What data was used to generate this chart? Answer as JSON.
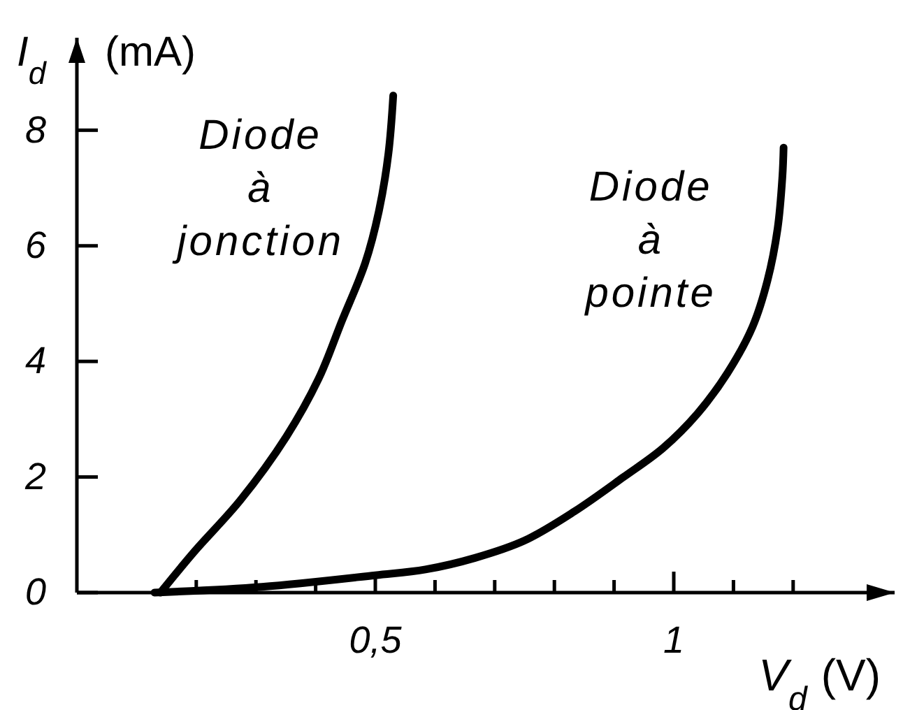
{
  "chart_data": {
    "type": "line",
    "xlabel": "V$_{d}$ (V)",
    "ylabel": "I$_{d}$ (mA)",
    "xlim": [
      0,
      1.37
    ],
    "ylim": [
      0,
      9.6
    ],
    "xticks": [
      {
        "value": 0.2,
        "label": null
      },
      {
        "value": 0.3,
        "label": null
      },
      {
        "value": 0.4,
        "label": null
      },
      {
        "value": 0.5,
        "label": "0,5"
      },
      {
        "value": 0.6,
        "label": null
      },
      {
        "value": 0.7,
        "label": null
      },
      {
        "value": 0.8,
        "label": null
      },
      {
        "value": 0.9,
        "label": null
      },
      1,
      {
        "value": 1.1,
        "label": null
      },
      {
        "value": 1.2,
        "label": null
      }
    ],
    "yticks": [
      0,
      2,
      4,
      6,
      8
    ],
    "line_style": "solid",
    "series": [
      {
        "name": "Diode à jonction",
        "color": "#000000",
        "x": [
          0.14,
          0.196,
          0.274,
          0.351,
          0.405,
          0.444,
          0.483,
          0.506,
          0.522,
          0.53
        ],
        "values": [
          0,
          0.7,
          1.6,
          2.7,
          3.7,
          4.7,
          5.7,
          6.6,
          7.6,
          8.6
        ]
      },
      {
        "name": "Diode à pointe",
        "color": "#000000",
        "x": [
          0.13,
          0.31,
          0.5,
          0.584,
          0.667,
          0.75,
          0.833,
          0.916,
          0.982,
          1.04,
          1.09,
          1.132,
          1.157,
          1.174,
          1.182,
          1.184
        ],
        "values": [
          0,
          0.1,
          0.3,
          0.4,
          0.6,
          0.9,
          1.4,
          2.0,
          2.5,
          3.1,
          3.8,
          4.6,
          5.4,
          6.3,
          7.2,
          7.7
        ]
      }
    ]
  }
}
